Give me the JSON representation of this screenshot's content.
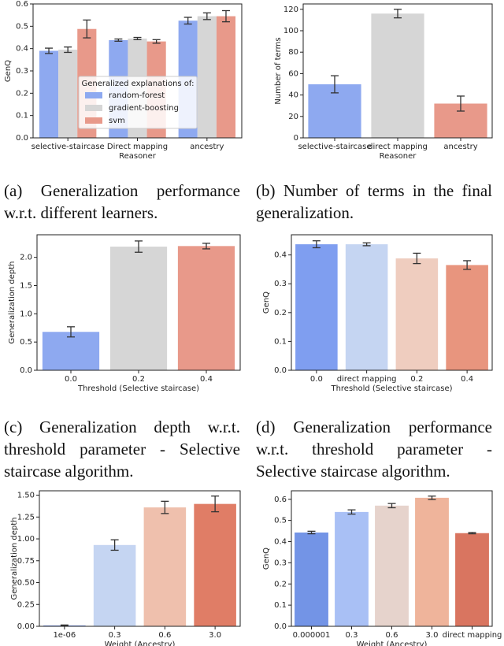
{
  "chart_data": [
    {
      "type": "bar",
      "caption": "(a) Generalization performance w.r.t. different learners.",
      "ylabel": "GenQ",
      "xlabel": "Reasoner",
      "categories": [
        "selective-staircase",
        "Direct mapping",
        "ancestry"
      ],
      "series": [
        {
          "name": "random-forest",
          "color": "#8ea9f0",
          "values": [
            0.39,
            0.438,
            0.525
          ],
          "errors": [
            0.012,
            0.005,
            0.015
          ]
        },
        {
          "name": "gradient-boosting",
          "color": "#d6d6d6",
          "values": [
            0.395,
            0.445,
            0.545
          ],
          "errors": [
            0.012,
            0.005,
            0.015
          ]
        },
        {
          "name": "svm",
          "color": "#e8998a",
          "values": [
            0.488,
            0.432,
            0.545
          ],
          "errors": [
            0.04,
            0.008,
            0.025
          ]
        }
      ],
      "legend_title": "Generalized explanations of:",
      "legend": "center",
      "ylim": [
        0,
        0.6
      ],
      "yticks": [
        {
          "value": 0,
          "label": "0.0"
        },
        0.1,
        0.2,
        0.3,
        0.4,
        0.5,
        0.6
      ]
    },
    {
      "type": "bar",
      "caption": "(b) Number of terms in the final generalization.",
      "ylabel": "Number of terms",
      "xlabel": "Reasoner",
      "categories": [
        "selective-staircase",
        "direct mapping",
        "ancestry"
      ],
      "values": [
        50,
        116,
        32
      ],
      "errors": [
        8,
        4,
        7
      ],
      "colors": [
        "#8ea9f0",
        "#d6d6d6",
        "#e8998a"
      ],
      "ylim": [
        0,
        125
      ],
      "yticks": [
        0,
        20,
        40,
        60,
        80,
        100,
        120
      ]
    },
    {
      "type": "bar",
      "caption": "(c) Generalization depth w.r.t. threshold parameter - Selective staircase algorithm.",
      "ylabel": "Generalization depth",
      "xlabel": "Threshold (Selective staircase)",
      "categories": [
        "0.0",
        "0.2",
        "0.4"
      ],
      "values": [
        0.68,
        2.19,
        2.2
      ],
      "errors": [
        0.09,
        0.1,
        0.05
      ],
      "colors": [
        "#8ea9f0",
        "#d6d6d6",
        "#e8998a"
      ],
      "ylim": [
        0,
        2.4
      ],
      "yticks": [
        {
          "value": 0,
          "label": "0.0"
        },
        0.5,
        {
          "value": 1,
          "label": "1.0"
        },
        1.5,
        {
          "value": 2,
          "label": "2.0"
        }
      ]
    },
    {
      "type": "bar",
      "caption": "(d) Generalization performance w.r.t. threshold parameter - Selective staircase algorithm.",
      "ylabel": "GenQ",
      "xlabel": "Threshold (Selective staircase)",
      "categories": [
        "0.0",
        "direct mapping",
        "0.2",
        "0.4"
      ],
      "values": [
        0.437,
        0.437,
        0.388,
        0.365
      ],
      "errors": [
        0.012,
        0.005,
        0.018,
        0.015
      ],
      "colors": [
        "#7f9ef0",
        "#c5d5f2",
        "#efcdbf",
        "#e8957e"
      ],
      "ylim": [
        0,
        0.47
      ],
      "yticks": [
        {
          "value": 0,
          "label": "0.0"
        },
        0.1,
        0.2,
        0.3,
        0.4
      ]
    },
    {
      "type": "bar",
      "ylabel": "Generalization depth",
      "xlabel": "Weight (Ancestry)",
      "categories": [
        "1e-06",
        "0.3",
        "0.6",
        "3.0"
      ],
      "values": [
        0.01,
        0.93,
        1.36,
        1.4
      ],
      "errors": [
        0.005,
        0.06,
        0.07,
        0.09
      ],
      "colors": [
        "#7f9ef0",
        "#c5d5f2",
        "#efc0ad",
        "#e07d66"
      ],
      "ylim": [
        0,
        1.55
      ],
      "yticks": [
        {
          "value": 0,
          "label": "0.00"
        },
        0.25,
        {
          "value": 0.5,
          "label": "0.50"
        },
        0.75,
        {
          "value": 1,
          "label": "1.00"
        },
        1.25,
        {
          "value": 1.5,
          "label": "1.50"
        }
      ]
    },
    {
      "type": "bar",
      "ylabel": "GenQ",
      "xlabel": "Weight (Ancestry)",
      "categories": [
        "0.000001",
        "0.3",
        "0.6",
        "3.0",
        "direct mapping"
      ],
      "values": [
        0.443,
        0.54,
        0.57,
        0.607,
        0.44
      ],
      "errors": [
        0.006,
        0.01,
        0.01,
        0.008,
        0.003
      ],
      "colors": [
        "#7394e6",
        "#a9c0f5",
        "#e6d3cc",
        "#efb49b",
        "#d97560"
      ],
      "ylim": [
        0,
        0.64
      ],
      "yticks": [
        {
          "value": 0,
          "label": "0.0"
        },
        0.1,
        0.2,
        0.3,
        0.4,
        0.5,
        0.6
      ]
    }
  ]
}
